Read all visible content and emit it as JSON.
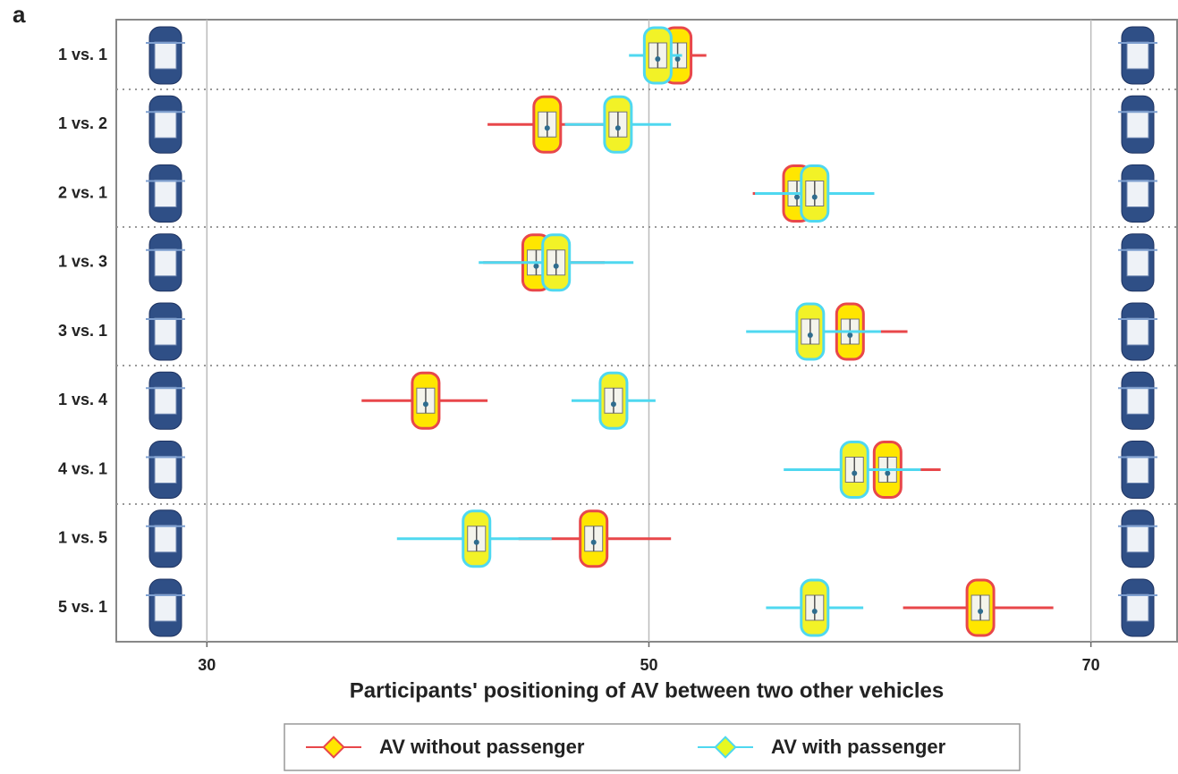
{
  "chart_data": {
    "type": "dot_errorbar",
    "panel_label": "a",
    "x_label": "Participants' positioning of AV between two other vehicles",
    "categories": [
      "1 vs. 1",
      "1 vs. 2",
      "2 vs. 1",
      "1 vs. 3",
      "3 vs. 1",
      "1 vs. 4",
      "4 vs. 1",
      "1 vs. 5",
      "5 vs. 1"
    ],
    "xlim": [
      25.9,
      73.9
    ],
    "xticks": [
      30,
      50,
      70
    ],
    "grid": true,
    "series": [
      {
        "name": "AV without passenger",
        "color": "#e8474a",
        "values": [
          51.3,
          45.4,
          56.7,
          44.9,
          59.1,
          39.9,
          60.8,
          47.5,
          65.0
        ],
        "lower": [
          49.8,
          42.7,
          54.7,
          42.5,
          57.0,
          37.0,
          58.6,
          44.1,
          61.5
        ],
        "upper": [
          52.6,
          48.0,
          59.2,
          48.0,
          61.7,
          42.7,
          63.2,
          51.0,
          68.3
        ]
      },
      {
        "name": "AV with passenger",
        "color": "#4fd8f0",
        "values": [
          50.4,
          48.6,
          57.5,
          45.8,
          57.3,
          48.4,
          59.3,
          42.2,
          57.5
        ],
        "lower": [
          49.1,
          46.2,
          54.8,
          42.3,
          54.4,
          46.5,
          56.1,
          38.6,
          55.3
        ],
        "upper": [
          51.5,
          51.0,
          60.2,
          49.3,
          60.5,
          50.3,
          62.3,
          45.6,
          59.7
        ]
      }
    ]
  }
}
